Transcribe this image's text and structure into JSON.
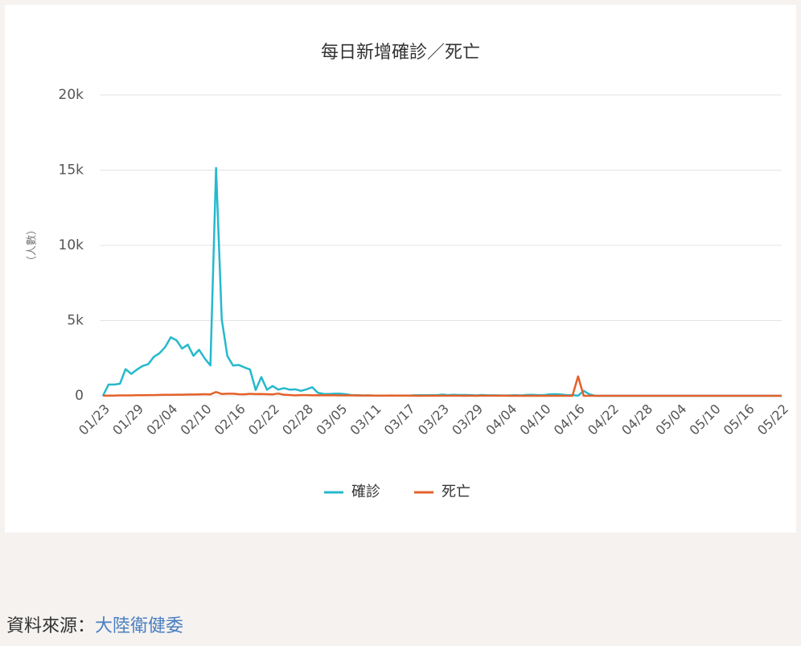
{
  "chart_data": {
    "type": "line",
    "title": "每日新增確診／死亡",
    "y_label": "（人數）",
    "categories": [
      "01/23",
      null,
      null,
      null,
      null,
      null,
      "01/29",
      null,
      null,
      null,
      null,
      null,
      "02/04",
      null,
      null,
      null,
      null,
      null,
      "02/10",
      null,
      null,
      null,
      null,
      null,
      "02/16",
      null,
      null,
      null,
      null,
      null,
      "02/22",
      null,
      null,
      null,
      null,
      null,
      "02/28",
      null,
      null,
      null,
      null,
      null,
      "03/05",
      null,
      null,
      null,
      null,
      null,
      "03/11",
      null,
      null,
      null,
      null,
      null,
      "03/17",
      null,
      null,
      null,
      null,
      null,
      "03/23",
      null,
      null,
      null,
      null,
      null,
      "03/29",
      null,
      null,
      null,
      null,
      null,
      "04/04",
      null,
      null,
      null,
      null,
      null,
      "04/10",
      null,
      null,
      null,
      null,
      null,
      "04/16",
      null,
      null,
      null,
      null,
      null,
      "04/22",
      null,
      null,
      null,
      null,
      null,
      "04/28",
      null,
      null,
      null,
      null,
      null,
      "05/04",
      null,
      null,
      null,
      null,
      null,
      "05/10",
      null,
      null,
      null,
      null,
      null,
      "05/16",
      null,
      null,
      null,
      null,
      null,
      "05/22"
    ],
    "series": [
      {
        "name": "確診",
        "color": "#25b9cc",
        "values": [
          0,
          750,
          750,
          800,
          1770,
          1460,
          1740,
          1980,
          2100,
          2590,
          2830,
          3240,
          3890,
          3690,
          3140,
          3400,
          2660,
          3060,
          2480,
          2020,
          15150,
          5090,
          2640,
          2010,
          2050,
          1890,
          1750,
          390,
          1250,
          400,
          650,
          410,
          510,
          410,
          430,
          330,
          430,
          570,
          200,
          125,
          120,
          140,
          140,
          100,
          40,
          40,
          20,
          25,
          15,
          10,
          10,
          20,
          15,
          20,
          15,
          35,
          40,
          40,
          45,
          40,
          80,
          45,
          65,
          55,
          55,
          45,
          30,
          50,
          35,
          35,
          30,
          20,
          30,
          40,
          30,
          60,
          65,
          40,
          45,
          100,
          110,
          90,
          45,
          45,
          10,
          330,
          100,
          0,
          0,
          0,
          0,
          0,
          0,
          0,
          0,
          0,
          0,
          0,
          0,
          0,
          0,
          0,
          0,
          0,
          0,
          0,
          0,
          0,
          0,
          0,
          0,
          0,
          0,
          0,
          0,
          0,
          0,
          0,
          0,
          0,
          0
        ]
      },
      {
        "name": "死亡",
        "color": "#e4612a",
        "values": [
          8,
          16,
          15,
          24,
          26,
          26,
          38,
          43,
          46,
          45,
          57,
          64,
          65,
          73,
          73,
          86,
          89,
          97,
          108,
          97,
          254,
          121,
          143,
          142,
          105,
          98,
          136,
          114,
          118,
          109,
          97,
          150,
          71,
          52,
          29,
          44,
          47,
          35,
          42,
          31,
          38,
          31,
          30,
          28,
          27,
          22,
          17,
          22,
          11,
          7,
          13,
          10,
          14,
          13,
          11,
          8,
          3,
          7,
          6,
          9,
          7,
          4,
          6,
          5,
          3,
          5,
          1,
          4,
          4,
          7,
          6,
          4,
          3,
          3,
          1,
          2,
          2,
          0,
          1,
          1,
          1,
          0,
          0,
          0,
          1290,
          0,
          0,
          0,
          0,
          0,
          0,
          0,
          0,
          0,
          0,
          0,
          0,
          0,
          0,
          0,
          0,
          0,
          0,
          0,
          0,
          0,
          0,
          0,
          0,
          0,
          0,
          0,
          0,
          0,
          0,
          0,
          0,
          0,
          0,
          0,
          0
        ]
      }
    ],
    "ylim": [
      0,
      20000
    ],
    "yticks": [
      0,
      {
        "value": 5000,
        "label": "5k"
      },
      {
        "value": 10000,
        "label": "10k"
      },
      {
        "value": 15000,
        "label": "15k"
      },
      {
        "value": 20000,
        "label": "20k"
      }
    ],
    "grid": true,
    "legend": "bottom"
  },
  "source": {
    "label": "資料來源：",
    "link": "大陸衛健委"
  }
}
